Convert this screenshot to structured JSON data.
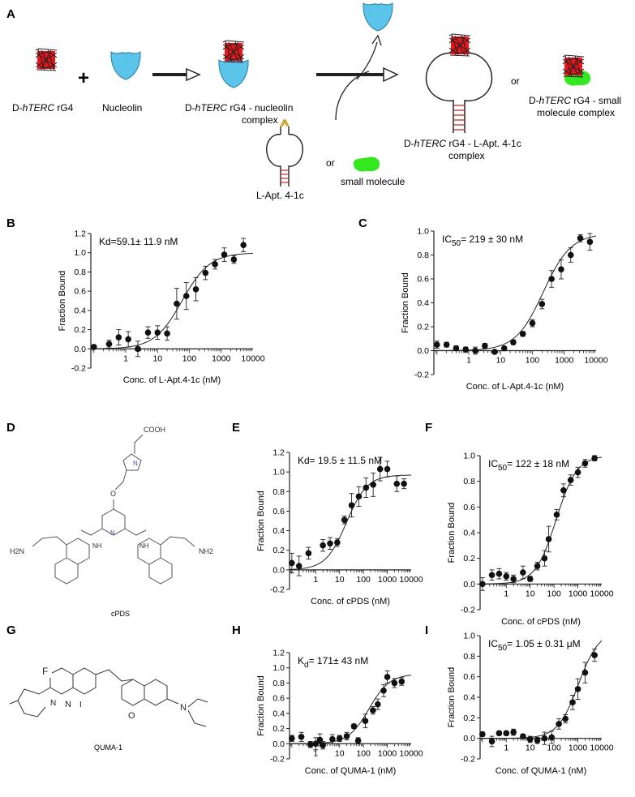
{
  "panel_labels": {
    "A": "A",
    "B": "B",
    "C": "C",
    "D": "D",
    "E": "E",
    "F": "F",
    "G": "G",
    "H": "H",
    "I": "I"
  },
  "schematic": {
    "labels": {
      "rg4": [
        "D-",
        "hTERC",
        " rG4"
      ],
      "plus": "+",
      "nucleolin": "Nucleolin",
      "complex_line1": [
        "D-",
        "hTERC",
        " rG4 - nucleolin"
      ],
      "complex_line2": "complex",
      "aptamer": "L-Apt. 4-1c",
      "or1": "or",
      "small_molecule": "small molecule",
      "apt_complex_line1": [
        "D-",
        "hTERC",
        " rG4 - L-Apt. 4-1c"
      ],
      "apt_complex_line2": "complex",
      "or2": "or",
      "sm_complex_line1": [
        "D-",
        "hTERC",
        " rG4 - small"
      ],
      "sm_complex_line2": "molecule complex"
    },
    "colors": {
      "rg4": "#e8151b",
      "nucleolin": "#5bc4ea",
      "small_molecule": "#33e81f",
      "loop": "#c22c2c"
    }
  },
  "structures": {
    "cpds": {
      "name": "cPDS",
      "cooh": "COOH",
      "nh2_left": "H2N",
      "nh2_right": "NH2",
      "nh": "NH",
      "n": "N",
      "o": "O"
    },
    "quma": {
      "name": "QUMA-1",
      "f": "F",
      "n": "N",
      "iodide": "I",
      "o": "O"
    }
  },
  "chart_data": [
    {
      "id": "B",
      "type": "scatter",
      "annotation": [
        "Kd=59.1± 11.9 nM"
      ],
      "xlabel": "Conc. of L-Apt.4-1c (nM)",
      "ylabel": "Fraction Bound",
      "xscale": "log",
      "xlim": [
        0.08,
        10000
      ],
      "ylim": [
        -0.2,
        1.2
      ],
      "xticks": [
        1,
        10,
        100,
        1000,
        10000
      ],
      "xticklabels": [
        "1",
        "10",
        "100",
        "1000",
        "10000"
      ],
      "yticks": [
        -0.2,
        0,
        0.2,
        0.4,
        0.6,
        0.8,
        1.0,
        1.2
      ],
      "yticklabels": [
        "-0.2",
        "0.0",
        "0.2",
        "0.4",
        "0.6",
        "0.8",
        "1.0",
        "1.2"
      ],
      "fit": {
        "kd": 59.1,
        "top": 1.0
      },
      "points": [
        {
          "x": 0.1,
          "y": 0.02,
          "err": 0.02
        },
        {
          "x": 0.3,
          "y": 0.05,
          "err": 0.04
        },
        {
          "x": 0.6,
          "y": 0.12,
          "err": 0.08
        },
        {
          "x": 1.2,
          "y": 0.1,
          "err": 0.08
        },
        {
          "x": 2.4,
          "y": 0.0,
          "err": 0.08
        },
        {
          "x": 5,
          "y": 0.17,
          "err": 0.06
        },
        {
          "x": 10,
          "y": 0.17,
          "err": 0.07
        },
        {
          "x": 20,
          "y": 0.16,
          "err": 0.07
        },
        {
          "x": 40,
          "y": 0.47,
          "err": 0.16
        },
        {
          "x": 80,
          "y": 0.55,
          "err": 0.14
        },
        {
          "x": 160,
          "y": 0.62,
          "err": 0.12
        },
        {
          "x": 320,
          "y": 0.79,
          "err": 0.07
        },
        {
          "x": 640,
          "y": 0.88,
          "err": 0.05
        },
        {
          "x": 1250,
          "y": 0.98,
          "err": 0.07
        },
        {
          "x": 2500,
          "y": 0.93,
          "err": 0.04
        },
        {
          "x": 5000,
          "y": 1.08,
          "err": 0.07
        }
      ]
    },
    {
      "id": "C",
      "type": "scatter",
      "annotation": [
        "IC",
        "50",
        "= 219 ± 30 nM"
      ],
      "xlabel": "Conc. of L-Apt.4-1c (nM)",
      "ylabel": "Fraction Bound",
      "xscale": "log",
      "xlim": [
        0.08,
        10000
      ],
      "ylim": [
        -0.2,
        1.0
      ],
      "xticks": [
        1,
        10,
        100,
        1000,
        10000
      ],
      "xticklabels": [
        "1",
        "10",
        "100",
        "1000",
        "10000"
      ],
      "yticks": [
        -0.2,
        0,
        0.2,
        0.4,
        0.6,
        0.8,
        1.0
      ],
      "yticklabels": [
        "-0.2",
        "0.0",
        "0.2",
        "0.4",
        "0.6",
        "0.8",
        "1.0"
      ],
      "fit": {
        "kd": 219,
        "top": 0.98
      },
      "points": [
        {
          "x": 0.1,
          "y": 0.05,
          "err": 0.03
        },
        {
          "x": 0.2,
          "y": 0.05,
          "err": 0.02
        },
        {
          "x": 0.4,
          "y": 0.02,
          "err": 0.02
        },
        {
          "x": 0.8,
          "y": 0.01,
          "err": 0.02
        },
        {
          "x": 1.6,
          "y": 0.0,
          "err": 0.03
        },
        {
          "x": 3.2,
          "y": 0.04,
          "err": 0.02
        },
        {
          "x": 6.5,
          "y": -0.01,
          "err": 0.01
        },
        {
          "x": 13,
          "y": 0.02,
          "err": 0.01
        },
        {
          "x": 25,
          "y": 0.07,
          "err": 0.02
        },
        {
          "x": 50,
          "y": 0.14,
          "err": 0.02
        },
        {
          "x": 100,
          "y": 0.23,
          "err": 0.03
        },
        {
          "x": 200,
          "y": 0.39,
          "err": 0.04
        },
        {
          "x": 400,
          "y": 0.6,
          "err": 0.07
        },
        {
          "x": 800,
          "y": 0.68,
          "err": 0.08
        },
        {
          "x": 1600,
          "y": 0.8,
          "err": 0.06
        },
        {
          "x": 3200,
          "y": 0.94,
          "err": 0.03
        },
        {
          "x": 6400,
          "y": 0.91,
          "err": 0.07
        }
      ]
    },
    {
      "id": "E",
      "type": "scatter",
      "annotation": [
        "Kd= 19.5 ± 11.5 nM"
      ],
      "xlabel": "Conc. of cPDS (nM)",
      "ylabel": "Fraction Bound",
      "xscale": "log",
      "xlim": [
        0.08,
        10000
      ],
      "ylim": [
        -0.2,
        1.2
      ],
      "xticks": [
        1,
        10,
        100,
        1000,
        10000
      ],
      "xticklabels": [
        "1",
        "10",
        "100",
        "1000",
        "10000"
      ],
      "yticks": [
        -0.2,
        0,
        0.2,
        0.4,
        0.6,
        0.8,
        1.0,
        1.2
      ],
      "yticklabels": [
        "-0.2",
        "0.0",
        "0.2",
        "0.4",
        "0.6",
        "0.8",
        "1.0",
        "1.2"
      ],
      "fit": {
        "kd": 19.5,
        "top": 0.97
      },
      "points": [
        {
          "x": 0.1,
          "y": 0.07,
          "err": 0.1
        },
        {
          "x": 0.2,
          "y": 0.04,
          "err": 0.1
        },
        {
          "x": 0.5,
          "y": 0.17,
          "err": 0.06
        },
        {
          "x": 2,
          "y": 0.25,
          "err": 0.06
        },
        {
          "x": 4,
          "y": 0.27,
          "err": 0.06
        },
        {
          "x": 8,
          "y": 0.28,
          "err": 0.04
        },
        {
          "x": 16,
          "y": 0.51,
          "err": 0.04
        },
        {
          "x": 32,
          "y": 0.66,
          "err": 0.12
        },
        {
          "x": 64,
          "y": 0.75,
          "err": 0.1
        },
        {
          "x": 128,
          "y": 0.84,
          "err": 0.1
        },
        {
          "x": 256,
          "y": 0.87,
          "err": 0.12
        },
        {
          "x": 500,
          "y": 1.03,
          "err": 0.12
        },
        {
          "x": 1000,
          "y": 1.03,
          "err": 0.08
        },
        {
          "x": 2500,
          "y": 0.88,
          "err": 0.08
        },
        {
          "x": 5000,
          "y": 0.88,
          "err": 0.05
        }
      ]
    },
    {
      "id": "F",
      "type": "scatter",
      "annotation": [
        "IC",
        "50",
        "= 122 ± 18 nM"
      ],
      "xlabel": "Conc. of cPDS (nM)",
      "ylabel": "Fraction Bound",
      "xscale": "log",
      "xlim": [
        0.08,
        10000
      ],
      "ylim": [
        -0.2,
        1.0
      ],
      "xticks": [
        1,
        10,
        100,
        1000,
        10000
      ],
      "xticklabels": [
        "1",
        "10",
        "100",
        "1000",
        "10000"
      ],
      "yticks": [
        -0.2,
        0,
        0.2,
        0.4,
        0.6,
        0.8,
        1.0
      ],
      "yticklabels": [
        "-0.2",
        "0.0",
        "0.2",
        "0.4",
        "0.6",
        "0.8",
        "1.0"
      ],
      "fit": {
        "kd": 122,
        "top": 1.0
      },
      "points": [
        {
          "x": 0.1,
          "y": 0.0,
          "err": 0.05
        },
        {
          "x": 0.25,
          "y": 0.07,
          "err": 0.04
        },
        {
          "x": 0.5,
          "y": 0.08,
          "err": 0.04
        },
        {
          "x": 1,
          "y": 0.06,
          "err": 0.03
        },
        {
          "x": 2,
          "y": 0.04,
          "err": 0.03
        },
        {
          "x": 5,
          "y": 0.09,
          "err": 0.05
        },
        {
          "x": 10,
          "y": 0.04,
          "err": 0.02
        },
        {
          "x": 20,
          "y": 0.14,
          "err": 0.03
        },
        {
          "x": 40,
          "y": 0.2,
          "err": 0.06
        },
        {
          "x": 60,
          "y": 0.35,
          "err": 0.1
        },
        {
          "x": 130,
          "y": 0.54,
          "err": 0.04
        },
        {
          "x": 250,
          "y": 0.73,
          "err": 0.05
        },
        {
          "x": 500,
          "y": 0.81,
          "err": 0.04
        },
        {
          "x": 1000,
          "y": 0.87,
          "err": 0.04
        },
        {
          "x": 2000,
          "y": 0.94,
          "err": 0.03
        },
        {
          "x": 5000,
          "y": 0.98,
          "err": 0.02
        }
      ]
    },
    {
      "id": "H",
      "type": "scatter",
      "annotation": [
        "K",
        "d",
        "= 171± 43 nM"
      ],
      "xlabel": "Conc. of QUMA-1 (nM)",
      "ylabel": "Fraction Bound",
      "xscale": "log",
      "xlim": [
        0.08,
        10000
      ],
      "ylim": [
        -0.2,
        1.2
      ],
      "xticks": [
        1,
        10,
        100,
        1000,
        10000
      ],
      "xticklabels": [
        "1",
        "10",
        "100",
        "1000",
        "10000"
      ],
      "yticks": [
        -0.2,
        0,
        0.2,
        0.4,
        0.6,
        0.8,
        1.0,
        1.2
      ],
      "yticklabels": [
        "-0.2",
        "0.0",
        "0.2",
        "0.4",
        "0.6",
        "0.8",
        "1.0",
        "1.2"
      ],
      "fit": {
        "kd": 171,
        "top": 0.92
      },
      "points": [
        {
          "x": 0.1,
          "y": 0.07,
          "err": 0.04
        },
        {
          "x": 0.25,
          "y": 0.09,
          "err": 0.06
        },
        {
          "x": 0.6,
          "y": -0.01,
          "err": 0.04
        },
        {
          "x": 1,
          "y": 0.0,
          "err": 0.08
        },
        {
          "x": 1.5,
          "y": 0.05,
          "err": 0.08
        },
        {
          "x": 2,
          "y": -0.02,
          "err": 0.05
        },
        {
          "x": 5,
          "y": 0.06,
          "err": 0.06
        },
        {
          "x": 10,
          "y": 0.07,
          "err": 0.04
        },
        {
          "x": 20,
          "y": 0.1,
          "err": 0.05
        },
        {
          "x": 40,
          "y": 0.23,
          "err": 0.03
        },
        {
          "x": 60,
          "y": 0.04,
          "err": 0.04
        },
        {
          "x": 120,
          "y": 0.3,
          "err": 0.09
        },
        {
          "x": 250,
          "y": 0.44,
          "err": 0.05
        },
        {
          "x": 400,
          "y": 0.52,
          "err": 0.07
        },
        {
          "x": 700,
          "y": 0.7,
          "err": 0.08
        },
        {
          "x": 1000,
          "y": 0.88,
          "err": 0.08
        },
        {
          "x": 2000,
          "y": 0.8,
          "err": 0.06
        },
        {
          "x": 4000,
          "y": 0.82,
          "err": 0.05
        }
      ]
    },
    {
      "id": "I",
      "type": "scatter",
      "annotation": [
        "IC",
        "50",
        "= 1.05 ± 0.31 μM"
      ],
      "xlabel": "Conc. of QUMA-1 (nM)",
      "ylabel": "Fraction Bound",
      "xscale": "log",
      "xlim": [
        0.08,
        10000
      ],
      "ylim": [
        -0.2,
        1.0
      ],
      "xticks": [
        1,
        10,
        100,
        1000,
        10000
      ],
      "xticklabels": [
        "1",
        "10",
        "100",
        "1000",
        "10000"
      ],
      "yticks": [
        -0.2,
        0,
        0.2,
        0.4,
        0.6,
        0.8,
        1.0
      ],
      "yticklabels": [
        "-0.2",
        "0.0",
        "0.2",
        "0.4",
        "0.6",
        "0.8",
        "1.0"
      ],
      "fit": {
        "kd": 1050,
        "top": 1.05
      },
      "points": [
        {
          "x": 0.1,
          "y": 0.04,
          "err": 0.02
        },
        {
          "x": 0.25,
          "y": -0.03,
          "err": 0.05
        },
        {
          "x": 0.5,
          "y": 0.05,
          "err": 0.02
        },
        {
          "x": 1,
          "y": 0.05,
          "err": 0.02
        },
        {
          "x": 2,
          "y": 0.06,
          "err": 0.03
        },
        {
          "x": 5,
          "y": 0.02,
          "err": 0.02
        },
        {
          "x": 10,
          "y": -0.01,
          "err": 0.03
        },
        {
          "x": 20,
          "y": -0.02,
          "err": 0.03
        },
        {
          "x": 40,
          "y": 0.0,
          "err": 0.06
        },
        {
          "x": 80,
          "y": 0.01,
          "err": 0.06
        },
        {
          "x": 160,
          "y": 0.14,
          "err": 0.05
        },
        {
          "x": 300,
          "y": 0.19,
          "err": 0.04
        },
        {
          "x": 600,
          "y": 0.35,
          "err": 0.07
        },
        {
          "x": 1000,
          "y": 0.48,
          "err": 0.1
        },
        {
          "x": 2000,
          "y": 0.64,
          "err": 0.1
        },
        {
          "x": 5000,
          "y": 0.81,
          "err": 0.06
        }
      ]
    }
  ]
}
